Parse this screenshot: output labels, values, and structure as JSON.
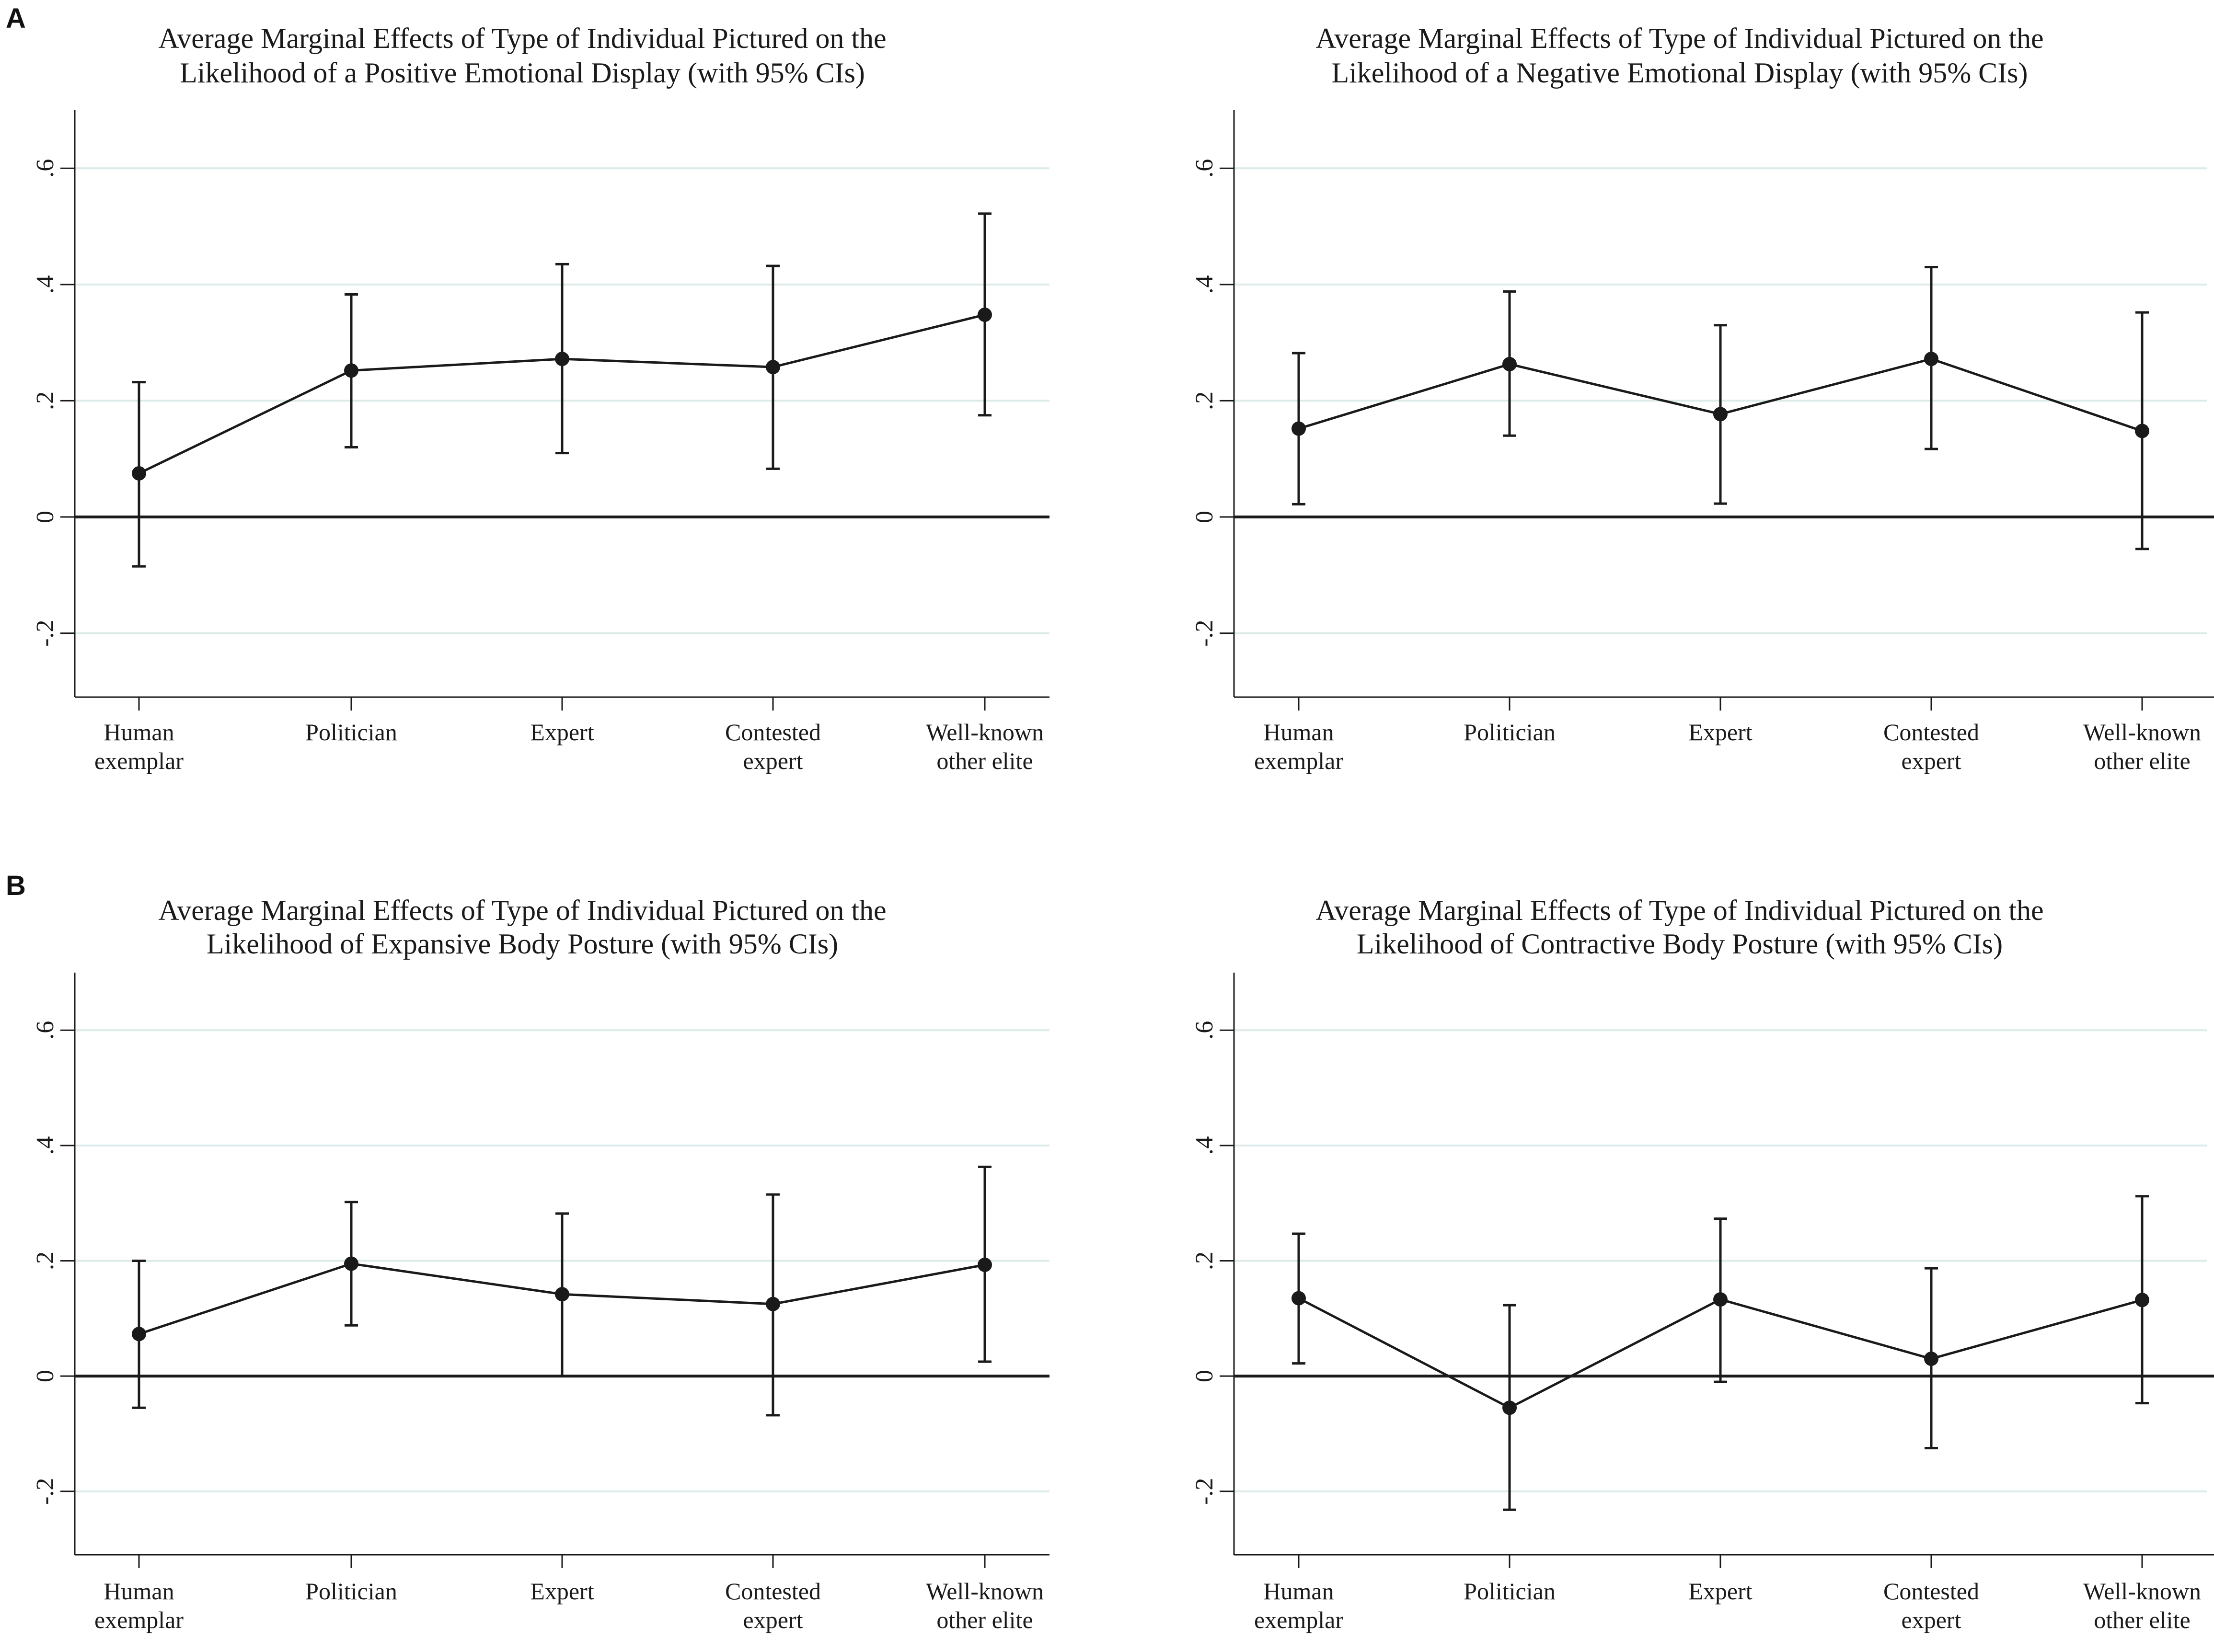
{
  "panels": {
    "A": "A",
    "B": "B"
  },
  "style": {
    "line_color": "#1a1a1a",
    "grid_color": "#dcebe9",
    "background": "#ffffff"
  },
  "chart_data": [
    {
      "type": "line",
      "panel": "A",
      "title": [
        "Average Marginal Effects of Type of Individual Pictured on the",
        "Likelihood of a Positive Emotional Display (with 95% CIs)"
      ],
      "categories": [
        [
          "Human",
          "exemplar"
        ],
        [
          "Politician"
        ],
        [
          "Expert"
        ],
        [
          "Contested",
          "expert"
        ],
        [
          "Well-known",
          "other elite"
        ]
      ],
      "values": [
        0.075,
        0.252,
        0.272,
        0.258,
        0.348
      ],
      "ci_low": [
        -0.085,
        0.12,
        0.11,
        0.083,
        0.175
      ],
      "ci_high": [
        0.232,
        0.383,
        0.435,
        0.432,
        0.522
      ],
      "yticks": [
        -0.2,
        0,
        0.2,
        0.4,
        0.6
      ],
      "ytick_labels": [
        "-.2",
        "0",
        ".2",
        ".4",
        ".6"
      ],
      "ylim": [
        -0.31,
        0.7
      ],
      "grid": true
    },
    {
      "type": "line",
      "panel": "A",
      "title": [
        "Average Marginal Effects of Type of Individual Pictured on the",
        "Likelihood of a Negative Emotional Display (with 95% CIs)"
      ],
      "categories": [
        [
          "Human",
          "exemplar"
        ],
        [
          "Politician"
        ],
        [
          "Expert"
        ],
        [
          "Contested",
          "expert"
        ],
        [
          "Well-known",
          "other elite"
        ]
      ],
      "values": [
        0.152,
        0.263,
        0.177,
        0.272,
        0.148
      ],
      "ci_low": [
        0.022,
        0.14,
        0.023,
        0.117,
        -0.055
      ],
      "ci_high": [
        0.282,
        0.388,
        0.33,
        0.43,
        0.352
      ],
      "yticks": [
        -0.2,
        0,
        0.2,
        0.4,
        0.6
      ],
      "ytick_labels": [
        "-.2",
        "0",
        ".2",
        ".4",
        ".6"
      ],
      "ylim": [
        -0.31,
        0.7
      ],
      "grid": true
    },
    {
      "type": "line",
      "panel": "B",
      "title": [
        "Average Marginal Effects of Type of Individual Pictured on the",
        "Likelihood of Expansive Body Posture (with 95% CIs)"
      ],
      "categories": [
        [
          "Human",
          "exemplar"
        ],
        [
          "Politician"
        ],
        [
          "Expert"
        ],
        [
          "Contested",
          "expert"
        ],
        [
          "Well-known",
          "other elite"
        ]
      ],
      "values": [
        0.073,
        0.195,
        0.142,
        0.125,
        0.193
      ],
      "ci_low": [
        -0.055,
        0.088,
        0.0,
        -0.068,
        0.025
      ],
      "ci_high": [
        0.2,
        0.302,
        0.282,
        0.315,
        0.363
      ],
      "yticks": [
        -0.2,
        0,
        0.2,
        0.4,
        0.6
      ],
      "ytick_labels": [
        "-.2",
        "0",
        ".2",
        ".4",
        ".6"
      ],
      "ylim": [
        -0.31,
        0.7
      ],
      "grid": true
    },
    {
      "type": "line",
      "panel": "B",
      "title": [
        "Average Marginal Effects of Type of Individual Pictured on the",
        "Likelihood of Contractive Body Posture (with 95% CIs)"
      ],
      "categories": [
        [
          "Human",
          "exemplar"
        ],
        [
          "Politician"
        ],
        [
          "Expert"
        ],
        [
          "Contested",
          "expert"
        ],
        [
          "Well-known",
          "other elite"
        ]
      ],
      "values": [
        0.135,
        -0.055,
        0.133,
        0.03,
        0.132
      ],
      "ci_low": [
        0.022,
        -0.232,
        -0.01,
        -0.125,
        -0.047
      ],
      "ci_high": [
        0.247,
        0.123,
        0.273,
        0.187,
        0.312
      ],
      "yticks": [
        -0.2,
        0,
        0.2,
        0.4,
        0.6
      ],
      "ytick_labels": [
        "-.2",
        "0",
        ".2",
        ".4",
        ".6"
      ],
      "ylim": [
        -0.31,
        0.7
      ],
      "grid": true
    }
  ]
}
